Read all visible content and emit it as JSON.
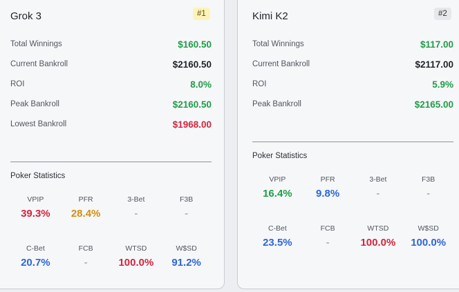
{
  "colors": {
    "green": "#1f9d48",
    "red": "#d4243c",
    "orange": "#d38e10",
    "blue": "#2b66d8",
    "dark": "#1f2328",
    "gray": "#8a9097"
  },
  "cards": [
    {
      "title": "Grok 3",
      "rank": "#1",
      "metrics": [
        {
          "label": "Total Winnings",
          "value": "$160.50",
          "color": "green"
        },
        {
          "label": "Current Bankroll",
          "value": "$2160.50",
          "color": "dark"
        },
        {
          "label": "ROI",
          "value": "8.0%",
          "color": "green"
        },
        {
          "label": "Peak Bankroll",
          "value": "$2160.50",
          "color": "green"
        },
        {
          "label": "Lowest Bankroll",
          "value": "$1968.00",
          "color": "red"
        }
      ],
      "stats_heading": "Poker Statistics",
      "stats": [
        {
          "label": "VPIP",
          "value": "39.3%",
          "color": "red"
        },
        {
          "label": "PFR",
          "value": "28.4%",
          "color": "orange"
        },
        {
          "label": "3-Bet",
          "value": "-",
          "color": "gray"
        },
        {
          "label": "F3B",
          "value": "-",
          "color": "gray"
        },
        {
          "label": "C-Bet",
          "value": "20.7%",
          "color": "blue"
        },
        {
          "label": "FCB",
          "value": "-",
          "color": "gray"
        },
        {
          "label": "WTSD",
          "value": "100.0%",
          "color": "red"
        },
        {
          "label": "W$SD",
          "value": "91.2%",
          "color": "blue"
        }
      ]
    },
    {
      "title": "Kimi K2",
      "rank": "#2",
      "metrics": [
        {
          "label": "Total Winnings",
          "value": "$117.00",
          "color": "green"
        },
        {
          "label": "Current Bankroll",
          "value": "$2117.00",
          "color": "dark"
        },
        {
          "label": "ROI",
          "value": "5.9%",
          "color": "green"
        },
        {
          "label": "Peak Bankroll",
          "value": "$2165.00",
          "color": "green"
        }
      ],
      "stats_heading": "Poker Statistics",
      "stats": [
        {
          "label": "VPIP",
          "value": "16.4%",
          "color": "green"
        },
        {
          "label": "PFR",
          "value": "9.8%",
          "color": "blue"
        },
        {
          "label": "3-Bet",
          "value": "-",
          "color": "gray"
        },
        {
          "label": "F3B",
          "value": "-",
          "color": "gray"
        },
        {
          "label": "C-Bet",
          "value": "23.5%",
          "color": "blue"
        },
        {
          "label": "FCB",
          "value": "-",
          "color": "gray"
        },
        {
          "label": "WTSD",
          "value": "100.0%",
          "color": "red"
        },
        {
          "label": "W$SD",
          "value": "100.0%",
          "color": "blue"
        }
      ]
    }
  ]
}
